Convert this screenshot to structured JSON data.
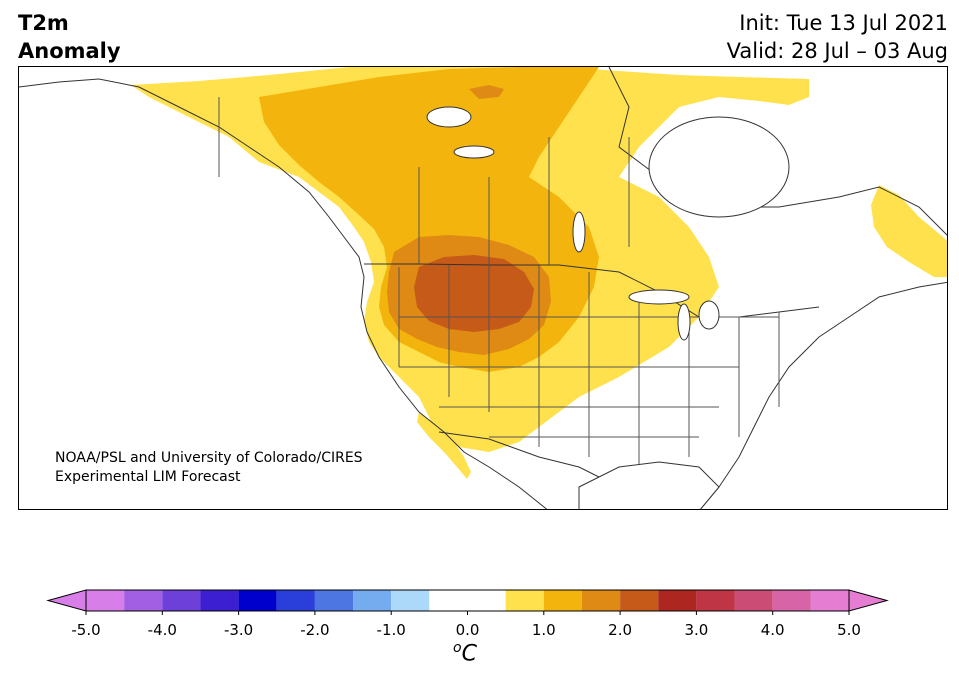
{
  "header": {
    "title_line1": "T2m",
    "title_line2": "Anomaly",
    "init": "Init: Tue 13 Jul 2021",
    "valid": "Valid: 28 Jul – 03 Aug"
  },
  "map": {
    "region": "North America",
    "variable": "2m temperature anomaly",
    "anomaly_centers": [
      {
        "area": "Northern Rockies / Montana-Wyoming",
        "level": "2.5 to 3.0"
      },
      {
        "area": "Western US and southern Canadian Prairies",
        "level": "1.5 to 2.5"
      },
      {
        "area": "Western and central Canada, Great Plains, Southwest US",
        "level": "0.5 to 1.5"
      },
      {
        "area": "Northern Canada and Newfoundland",
        "level": "0.5 to 1.0"
      }
    ]
  },
  "credit": {
    "line1": "NOAA/PSL and University of Colorado/CIRES",
    "line2": "Experimental LIM Forecast"
  },
  "colorbar": {
    "units_letter": "C",
    "units_sup": "o",
    "extend": "both",
    "ticks": [
      "-5.0",
      "-4.0",
      "-3.0",
      "-2.0",
      "-1.0",
      "0.0",
      "1.0",
      "2.0",
      "3.0",
      "4.0",
      "5.0"
    ],
    "levels": [
      -5.0,
      -4.5,
      -4.0,
      -3.5,
      -3.0,
      -2.5,
      -2.0,
      -1.5,
      -1.0,
      -0.5,
      0.5,
      1.0,
      1.5,
      2.0,
      2.5,
      3.0,
      3.5,
      4.0,
      4.5,
      5.0
    ],
    "colors": [
      "#d77ee8",
      "#a25fe3",
      "#6e40da",
      "#3c1fd0",
      "#0000cc",
      "#2a3fd9",
      "#4d76e3",
      "#74acef",
      "#acd9f9",
      "#ffffff",
      "#ffe14d",
      "#f3b50d",
      "#de8a14",
      "#c65a18",
      "#ad2620",
      "#bf3545",
      "#cb4d76",
      "#d864a8",
      "#e57ed3"
    ],
    "under_color": "#d77ee8",
    "over_color": "#e57ed3"
  }
}
